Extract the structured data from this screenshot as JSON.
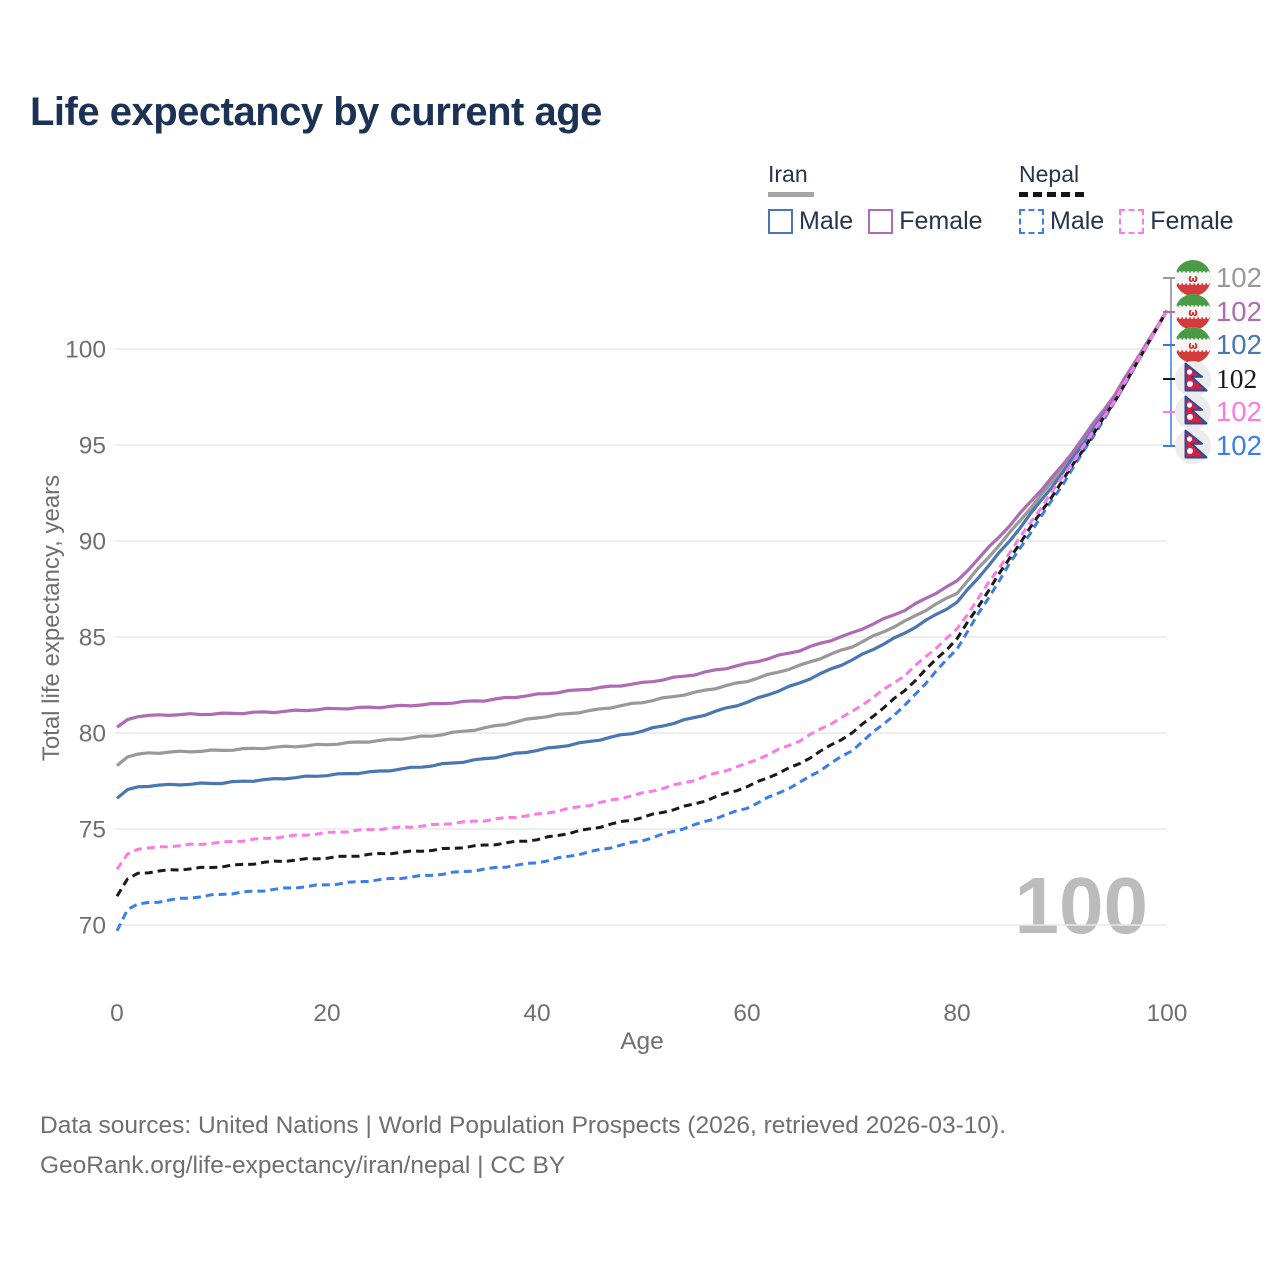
{
  "title": "Life expectancy by current age",
  "legend": {
    "iran": {
      "label": "Iran",
      "male": "Male",
      "female": "Female"
    },
    "nepal": {
      "label": "Nepal",
      "male": "Male",
      "female": "Female"
    }
  },
  "watermark": "100",
  "footer": {
    "line1": "Data sources: United Nations | World Population Prospects (2026, retrieved 2026-03-10).",
    "line2": "GeoRank.org/life-expectancy/iran/nepal | CC BY"
  },
  "colors": {
    "title_text": "#1c3254",
    "axis_text": "#6f6f6f",
    "gridline": "#e9e9e9",
    "watermark": "#bcbcbc",
    "iran_male": "#4a77b4",
    "iran_female": "#ad6cb3",
    "iran_both": "#999999",
    "nepal_male": "#3b7de9",
    "nepal_female": "#fb7be5",
    "nepal_both": "#1a1a1a"
  },
  "end_labels": [
    {
      "flag": "iran",
      "series": "Iran both sexes",
      "value": "102",
      "color": "#999999"
    },
    {
      "flag": "iran",
      "series": "Iran female",
      "value": "102",
      "color": "#ad6cb3"
    },
    {
      "flag": "iran",
      "series": "Iran male",
      "value": "102",
      "color": "#4a77b4"
    },
    {
      "flag": "nepal",
      "series": "Nepal both sexes",
      "value": "102",
      "color": "#1a1a1a"
    },
    {
      "flag": "nepal",
      "series": "Nepal female",
      "value": "102",
      "color": "#fb7be5"
    },
    {
      "flag": "nepal",
      "series": "Nepal male",
      "value": "102",
      "color": "#3b7de9"
    }
  ],
  "chart_data": {
    "type": "line",
    "title": "Life expectancy by current age",
    "xlabel": "Age",
    "ylabel": "Total life expectancy, years",
    "x_ticks": [
      0,
      20,
      40,
      60,
      80,
      100
    ],
    "y_ticks": [
      70,
      75,
      80,
      85,
      90,
      95,
      100
    ],
    "xlim": [
      0,
      100
    ],
    "ylim": [
      69.5,
      103
    ],
    "grid": "horizontal",
    "legend_position": "top-right",
    "ages": [
      0,
      1,
      2,
      3,
      5,
      10,
      15,
      20,
      25,
      30,
      35,
      40,
      45,
      50,
      55,
      60,
      65,
      70,
      75,
      80,
      85,
      90,
      95,
      100
    ],
    "series": [
      {
        "name": "Iran — Both sexes",
        "style": "solid",
        "color": "#999999",
        "values": [
          78.3,
          78.75,
          78.9,
          78.95,
          79.0,
          79.1,
          79.25,
          79.4,
          79.6,
          79.85,
          80.25,
          80.8,
          81.15,
          81.6,
          82.1,
          82.7,
          83.5,
          84.5,
          85.8,
          87.3,
          90.4,
          93.7,
          97.5,
          102
        ]
      },
      {
        "name": "Iran — Male",
        "style": "solid",
        "color": "#4a77b4",
        "values": [
          76.6,
          77.05,
          77.2,
          77.25,
          77.3,
          77.4,
          77.6,
          77.8,
          78.0,
          78.3,
          78.65,
          79.1,
          79.55,
          80.1,
          80.8,
          81.6,
          82.6,
          83.8,
          85.2,
          86.8,
          90.0,
          93.5,
          97.4,
          102
        ]
      },
      {
        "name": "Iran — Female",
        "style": "solid",
        "color": "#ad6cb3",
        "values": [
          80.3,
          80.7,
          80.85,
          80.9,
          80.95,
          81.0,
          81.1,
          81.25,
          81.35,
          81.5,
          81.7,
          82.0,
          82.3,
          82.6,
          83.05,
          83.6,
          84.3,
          85.2,
          86.4,
          87.9,
          90.8,
          93.9,
          97.6,
          102
        ]
      },
      {
        "name": "Nepal — Male",
        "style": "dashed",
        "color": "#3b7de9",
        "values": [
          69.7,
          70.8,
          71.1,
          71.15,
          71.3,
          71.6,
          71.85,
          72.1,
          72.35,
          72.6,
          72.9,
          73.25,
          73.8,
          74.4,
          75.2,
          76.1,
          77.4,
          79.1,
          81.4,
          84.4,
          88.8,
          92.9,
          97.2,
          102
        ]
      },
      {
        "name": "Nepal — Both sexes",
        "style": "dashed",
        "color": "#1a1a1a",
        "values": [
          71.5,
          72.4,
          72.7,
          72.75,
          72.85,
          73.05,
          73.3,
          73.5,
          73.7,
          73.9,
          74.15,
          74.45,
          75.0,
          75.6,
          76.3,
          77.2,
          78.4,
          80.0,
          82.2,
          84.9,
          89.1,
          93.1,
          97.25,
          102
        ]
      },
      {
        "name": "Nepal — Female",
        "style": "dashed",
        "color": "#fb7be5",
        "values": [
          72.9,
          73.7,
          73.95,
          74.0,
          74.1,
          74.3,
          74.55,
          74.8,
          75.0,
          75.2,
          75.45,
          75.75,
          76.25,
          76.85,
          77.55,
          78.4,
          79.6,
          81.1,
          83.0,
          85.4,
          89.4,
          93.3,
          97.3,
          102
        ]
      }
    ]
  }
}
